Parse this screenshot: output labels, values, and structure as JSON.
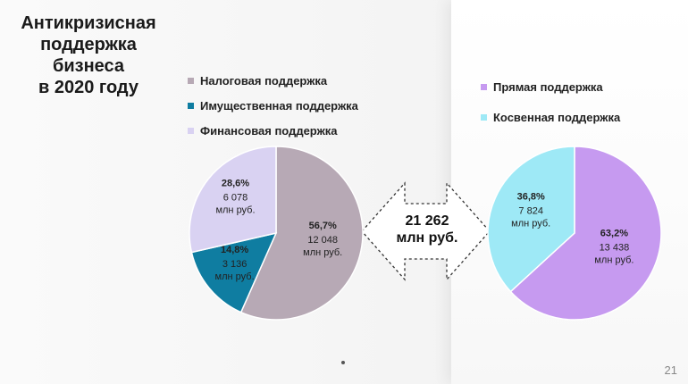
{
  "title_lines": [
    "Антикризисная",
    "поддержка",
    "бизнеса",
    "в 2020 году"
  ],
  "total": {
    "value": "21 262",
    "unit": "млн руб."
  },
  "page_number": "21",
  "chart_data": [
    {
      "type": "pie",
      "title": "",
      "legend_position": "top",
      "slices": [
        {
          "name": "Налоговая поддержка",
          "percent_label": "56,7%",
          "value_label": "12 048",
          "unit": "млн руб.",
          "percent": 56.7,
          "value": 12048,
          "color": "#b7a9b5"
        },
        {
          "name": "Имущественная поддержка",
          "percent_label": "14,8%",
          "value_label": "3 136",
          "unit": "млн руб.",
          "percent": 14.8,
          "value": 3136,
          "color": "#0f7da1"
        },
        {
          "name": "Финансовая поддержка",
          "percent_label": "28,6%",
          "value_label": "6 078",
          "unit": "млн руб.",
          "percent": 28.6,
          "value": 6078,
          "color": "#d9d2f2"
        }
      ]
    },
    {
      "type": "pie",
      "title": "",
      "legend_position": "top",
      "slices": [
        {
          "name": "Прямая поддержка",
          "percent_label": "63,2%",
          "value_label": "13 438",
          "unit": "млн руб.",
          "percent": 63.2,
          "value": 13438,
          "color": "#c69af0"
        },
        {
          "name": "Косвенная поддержка",
          "percent_label": "36,8%",
          "value_label": "7 824",
          "unit": "млн руб.",
          "percent": 36.8,
          "value": 7824,
          "color": "#9ee9f6"
        }
      ]
    }
  ]
}
